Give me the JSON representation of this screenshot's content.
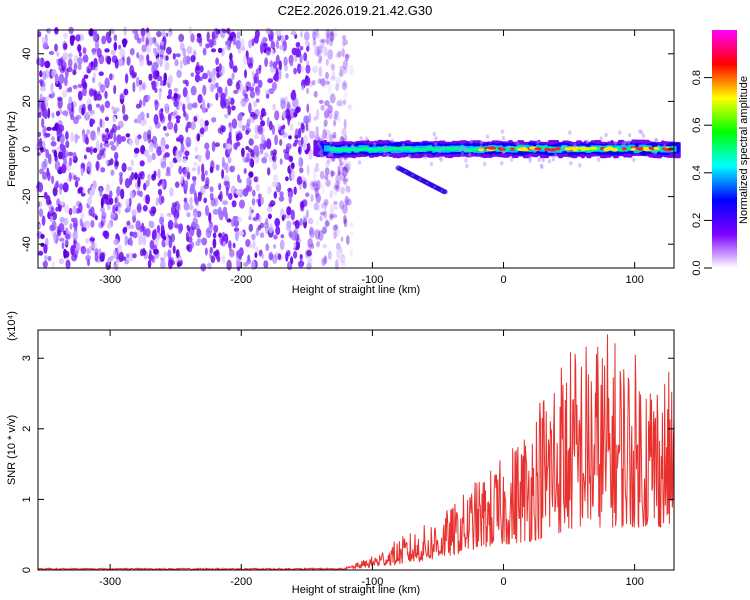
{
  "title": "C2E2.2026.019.21.42.G30",
  "chart_data": [
    {
      "type": "heatmap",
      "xlabel": "Height of straight line (km)",
      "ylabel": "Frequency (Hz)",
      "xlim": [
        -355,
        130
      ],
      "ylim": [
        -50,
        50
      ],
      "xticks": [
        -300,
        -200,
        -100,
        0,
        100
      ],
      "yticks": [
        -40,
        -20,
        0,
        20,
        40
      ],
      "noise_region_x": [
        -355,
        -125
      ],
      "signal_track": {
        "x_start": -145,
        "x_end": 130,
        "center_freq": 0,
        "band_width_hz": 6
      },
      "side_branch": {
        "x_start": -80,
        "x_end": -45,
        "freq_start": -8,
        "freq_end": -18
      },
      "colorbar": {
        "label": "Normalized spectral amplitude",
        "ticks": [
          "0.0",
          "0.2",
          "0.4",
          "0.6",
          "0.8"
        ],
        "range": [
          0,
          1
        ],
        "colors": [
          "#ffffff",
          "#7a00ff",
          "#0000ff",
          "#00ffff",
          "#00ff00",
          "#ffff00",
          "#ff0000",
          "#ff00ff"
        ]
      }
    },
    {
      "type": "line",
      "xlabel": "Height of straight line (km)",
      "ylabel": "SNR (10 * v/v)",
      "multiplier": "(x10⁴)",
      "xlim": [
        -355,
        130
      ],
      "ylim": [
        0,
        3.4
      ],
      "xticks": [
        -300,
        -200,
        -100,
        0,
        100
      ],
      "yticks": [
        0,
        1,
        2,
        3
      ],
      "series": [
        {
          "name": "SNR",
          "color": "#e8312e",
          "envelope": {
            "x": [
              -355,
              -120,
              -100,
              -80,
              -60,
              -40,
              -20,
              0,
              20,
              40,
              60,
              80,
              100,
              130
            ],
            "max": [
              0.03,
              0.04,
              0.2,
              0.45,
              0.65,
              0.9,
              1.3,
              1.6,
              2.2,
              3.1,
              3.3,
              3.4,
              3.1,
              2.8
            ],
            "base": [
              0.005,
              0.01,
              0.04,
              0.08,
              0.12,
              0.2,
              0.3,
              0.35,
              0.4,
              0.5,
              0.6,
              0.6,
              0.6,
              0.6
            ]
          }
        }
      ]
    }
  ]
}
